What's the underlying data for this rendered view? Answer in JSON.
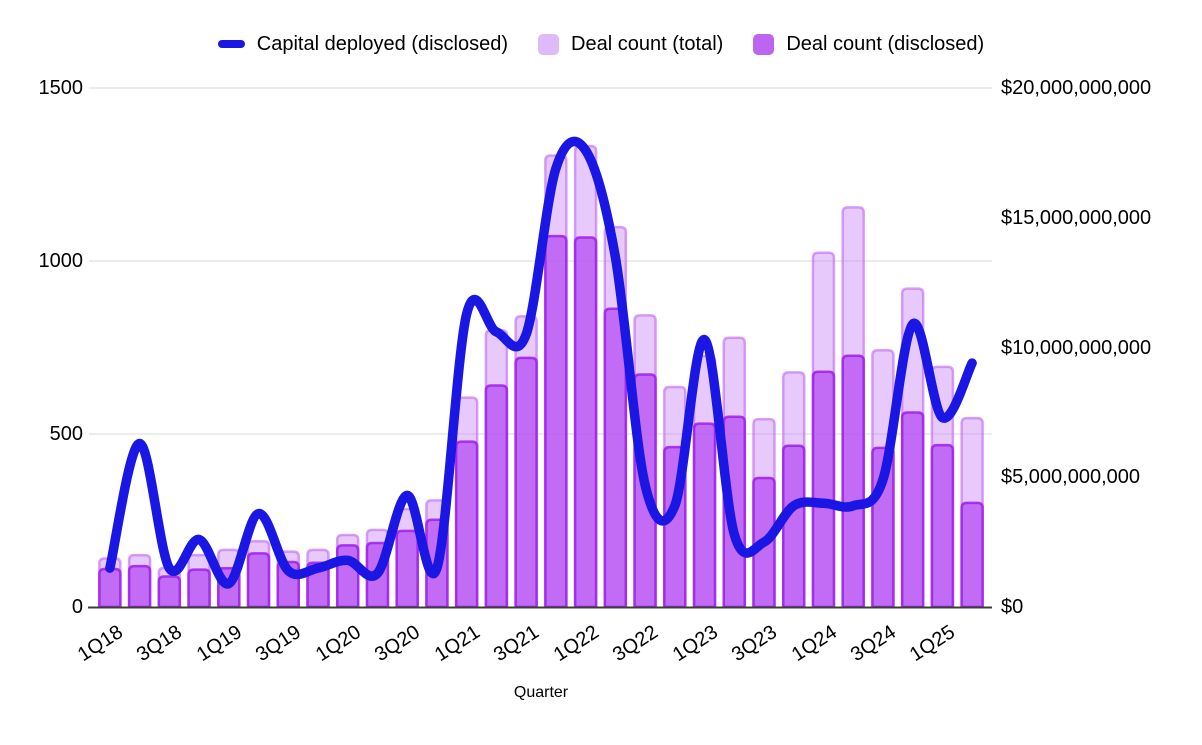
{
  "chart_data": {
    "type": "combo",
    "xlabel": "Quarter",
    "background": "#ffffff",
    "gridline_color": "#d9d9d9",
    "baseline_color": "#3c3c3c",
    "categories": [
      "1Q18",
      "2Q18",
      "3Q18",
      "4Q18",
      "1Q19",
      "2Q19",
      "3Q19",
      "4Q19",
      "1Q20",
      "2Q20",
      "3Q20",
      "4Q20",
      "1Q21",
      "2Q21",
      "3Q21",
      "4Q21",
      "1Q22",
      "2Q22",
      "3Q22",
      "4Q22",
      "1Q23",
      "2Q23",
      "3Q23",
      "4Q23",
      "1Q24",
      "2Q24",
      "3Q24",
      "4Q24",
      "1Q25",
      "2Q25"
    ],
    "x_tick_indices": [
      0,
      2,
      4,
      6,
      8,
      10,
      12,
      14,
      16,
      18,
      20,
      22,
      24,
      26,
      28
    ],
    "x_tick_labels": [
      "1Q18",
      "3Q18",
      "1Q19",
      "3Q19",
      "1Q20",
      "3Q20",
      "1Q21",
      "3Q21",
      "1Q22",
      "3Q22",
      "1Q23",
      "3Q23",
      "1Q24",
      "3Q24",
      "1Q25"
    ],
    "left_axis": {
      "min": 0,
      "max": 1500,
      "tick_values": [
        0,
        500,
        1000,
        1500
      ],
      "tick_labels": [
        "0",
        "500",
        "1000",
        "1500"
      ]
    },
    "right_axis": {
      "min": 0,
      "max": 20000000000,
      "tick_values": [
        0,
        5000000000,
        10000000000,
        15000000000,
        20000000000
      ],
      "tick_labels": [
        "$0",
        "$5,000,000,000",
        "$10,000,000,000",
        "$15,000,000,000",
        "$20,000,000,000"
      ]
    },
    "series": [
      {
        "name": "Capital deployed (disclosed)",
        "type": "line",
        "axis": "right",
        "color": "#1a16e3",
        "values": [
          1500000000,
          6300000000,
          1500000000,
          2600000000,
          900000000,
          3600000000,
          1400000000,
          1500000000,
          1800000000,
          1300000000,
          4300000000,
          1500000000,
          11300000000,
          10600000000,
          10500000000,
          16900000000,
          17600000000,
          13500000000,
          4700000000,
          3900000000,
          10300000000,
          2800000000,
          2500000000,
          3900000000,
          4000000000,
          3900000000,
          4900000000,
          10900000000,
          7300000000,
          9400000000
        ]
      },
      {
        "name": "Deal count (total)",
        "type": "bar",
        "axis": "left",
        "color": "#dfbaf8",
        "values": [
          140,
          150,
          113,
          150,
          165,
          190,
          160,
          165,
          208,
          223,
          283,
          308,
          605,
          800,
          840,
          1305,
          1332,
          1098,
          843,
          636,
          725,
          778,
          543,
          678,
          1024,
          1155,
          742,
          920,
          694,
          546
        ]
      },
      {
        "name": "Deal count (disclosed)",
        "type": "bar",
        "axis": "left",
        "color": "#bd64f1",
        "values": [
          110,
          118,
          88,
          108,
          112,
          155,
          130,
          128,
          178,
          185,
          220,
          252,
          478,
          640,
          720,
          1072,
          1068,
          862,
          672,
          462,
          530,
          550,
          373,
          466,
          680,
          726,
          460,
          562,
          468,
          301
        ]
      }
    ]
  }
}
